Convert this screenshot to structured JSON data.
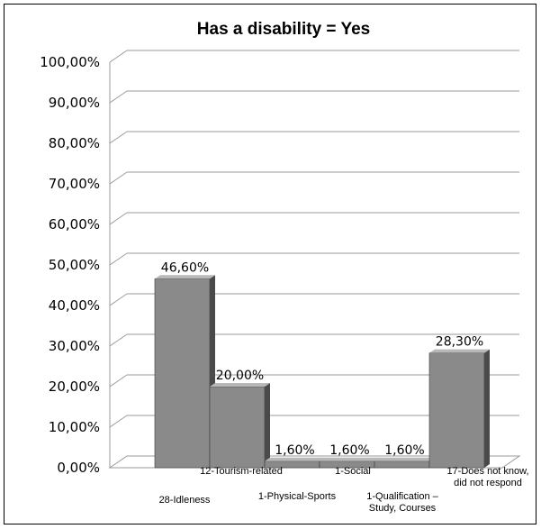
{
  "chart_data": {
    "type": "bar",
    "title": "Has a disability = Yes",
    "xlabel": "",
    "ylabel": "",
    "ylim": [
      0,
      100
    ],
    "yticks": [
      "0,00%",
      "10,00%",
      "20,00%",
      "30,00%",
      "40,00%",
      "50,00%",
      "60,00%",
      "70,00%",
      "80,00%",
      "90,00%",
      "100,00%"
    ],
    "categories": [
      [
        "28-Idleness"
      ],
      [
        "12-Tourism-related"
      ],
      [
        "1-Physical-Sports"
      ],
      [
        "1-Social"
      ],
      [
        "1-Qualification –",
        "Study, Courses"
      ],
      [
        "17-Does not know,",
        "did not respond"
      ]
    ],
    "values": [
      46.6,
      20.0,
      1.6,
      1.6,
      1.6,
      28.3
    ],
    "data_labels": [
      "46,60%",
      "20,00%",
      "1,60%",
      "1,60%",
      "1,60%",
      "28,30%"
    ],
    "grid": true,
    "legend": "none",
    "bar_color": "#8a8a8a"
  }
}
